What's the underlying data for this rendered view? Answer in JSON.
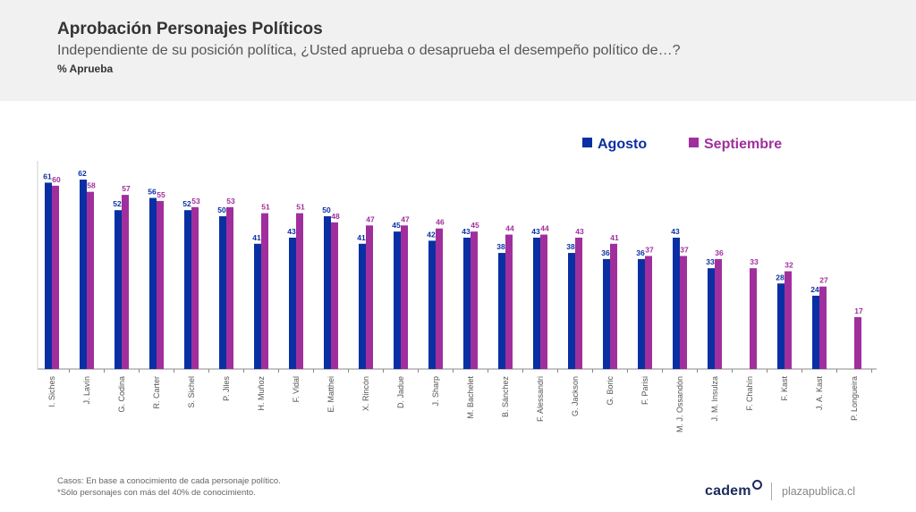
{
  "header": {
    "title": "Aprobación Personajes Políticos",
    "subtitle": "Independiente de su posición política, ¿Usted aprueba o desaprueba el desempeño político de…?",
    "unit": "% Aprueba"
  },
  "footer": {
    "note1": "Casos: En base a conocimiento de cada personaje político.",
    "note2": "*Sólo personajes con más del 40% de conocimiento.",
    "brand": "cadem",
    "site": "plazapublica.cl"
  },
  "colors": {
    "agosto": "#0a2fa3",
    "septiembre": "#a02f9d",
    "axis": "#888888"
  },
  "chart_data": {
    "type": "bar",
    "title": "Aprobación Personajes Políticos",
    "subtitle": "Independiente de su posición política, ¿Usted aprueba o desaprueba el desempeño político de…?",
    "ylabel": "% Aprueba",
    "xlabel": "",
    "ylim": [
      0,
      70
    ],
    "grid": false,
    "legend_position": "top-right",
    "categories": [
      "I. Siches",
      "J. Lavín",
      "G. Codina",
      "R. Carter",
      "S. Sichel",
      "P. Jiles",
      "H. Muñoz",
      "F. Vidal",
      "E. Matthei",
      "X. Rincón",
      "D. Jadue",
      "J. Sharp",
      "M. Bachelet",
      "B. Sánchez",
      "F. Alessandri",
      "G. Jackson",
      "G. Boric",
      "F. Parisi",
      "M. J. Ossandón",
      "J. M. Insulza",
      "F. Chahín",
      "F. Kast",
      "J. A. Kast",
      "P. Longueira"
    ],
    "series": [
      {
        "name": "Agosto",
        "values": [
          61,
          62,
          52,
          56,
          52,
          50,
          41,
          43,
          50,
          41,
          45,
          42,
          43,
          38,
          43,
          38,
          36,
          36,
          43,
          33,
          null,
          28,
          24,
          null
        ]
      },
      {
        "name": "Septiembre",
        "values": [
          60,
          58,
          57,
          55,
          53,
          53,
          51,
          51,
          48,
          47,
          47,
          46,
          45,
          44,
          44,
          43,
          41,
          37,
          37,
          36,
          33,
          32,
          27,
          17
        ]
      }
    ]
  }
}
